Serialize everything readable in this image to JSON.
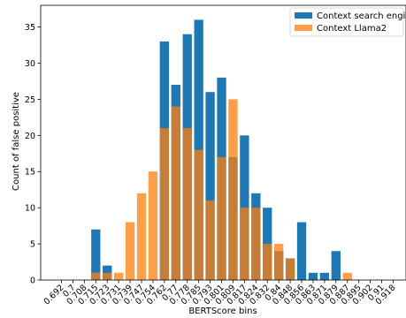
{
  "chart_data": {
    "type": "bar",
    "xlabel": "BERTScore bins",
    "ylabel": "Count of false positive",
    "ylim": [
      0,
      38
    ],
    "yticks": [
      0,
      5,
      10,
      15,
      20,
      25,
      30,
      35
    ],
    "categories": [
      "0.692",
      "0.7",
      "0.708",
      "0.715",
      "0.723",
      "0.731",
      "0.739",
      "0.747",
      "0.754",
      "0.762",
      "0.77",
      "0.778",
      "0.785",
      "0.793",
      "0.801",
      "0.809",
      "0.817",
      "0.824",
      "0.832",
      "0.84",
      "0.848",
      "0.856",
      "0.863",
      "0.871",
      "0.879",
      "0.887",
      "0.895",
      "0.902",
      "0.91",
      "0.918"
    ],
    "grid": false,
    "legend_position": "top-right",
    "overlay": true,
    "series": [
      {
        "name": "Context search engine",
        "color": "#1f77b4",
        "values": [
          0,
          0,
          0,
          7,
          2,
          0,
          0,
          0,
          0,
          33,
          27,
          34,
          36,
          26,
          28,
          17,
          20,
          12,
          10,
          4,
          3,
          8,
          1,
          1,
          4,
          0,
          0,
          0,
          0,
          0
        ]
      },
      {
        "name": "Context Llama2",
        "color": "#ff7f0e",
        "values": [
          0,
          0,
          0,
          1,
          1,
          1,
          8,
          12,
          15,
          21,
          24,
          21,
          18,
          11,
          17,
          25,
          10,
          10,
          5,
          5,
          3,
          0,
          0,
          0,
          0,
          1,
          0,
          0,
          0,
          0
        ]
      }
    ]
  }
}
